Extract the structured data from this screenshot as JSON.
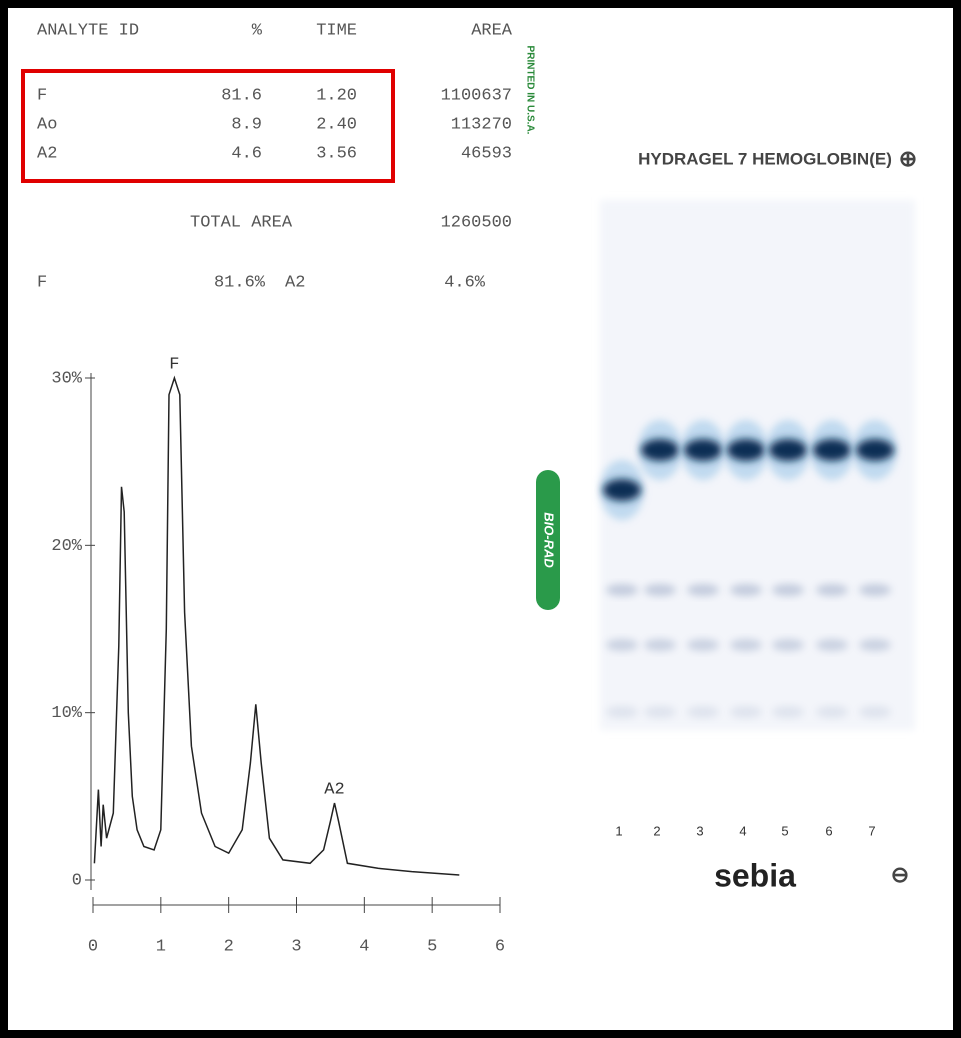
{
  "report": {
    "header": [
      "ANALYTE ID",
      "%",
      "TIME",
      "AREA"
    ],
    "rows": [
      [
        "F",
        "81.6",
        "1.20",
        "1100637"
      ],
      [
        "Ao",
        "8.9",
        "2.40",
        "113270"
      ],
      [
        "A2",
        "4.6",
        "3.56",
        "46593"
      ]
    ],
    "total_label": "TOTAL AREA",
    "total": "1260500",
    "summary": [
      "F",
      "81.6%",
      "A2",
      "4.6%"
    ],
    "side_note": "PRINTED IN U.S.A.",
    "brand": "BIO-RAD"
  },
  "chart_data": {
    "type": "line",
    "color": "#222222",
    "x": [
      0.02,
      0.08,
      0.12,
      0.15,
      0.2,
      0.3,
      0.38,
      0.42,
      0.46,
      0.52,
      0.58,
      0.65,
      0.75,
      0.9,
      1.0,
      1.08,
      1.12,
      1.2,
      1.28,
      1.35,
      1.45,
      1.6,
      1.8,
      2.0,
      2.2,
      2.32,
      2.4,
      2.48,
      2.6,
      2.8,
      3.2,
      3.4,
      3.5,
      3.56,
      3.62,
      3.75,
      4.2,
      4.7,
      5.4
    ],
    "values": [
      1,
      5.4,
      2,
      4.5,
      2.5,
      4,
      14,
      23.5,
      22,
      10,
      5,
      3,
      2,
      1.8,
      3,
      15,
      29,
      30,
      29,
      16,
      8,
      4,
      2,
      1.6,
      3,
      7,
      10.5,
      7,
      2.5,
      1.2,
      1,
      1.8,
      3.5,
      4.6,
      3.5,
      1,
      0.7,
      0.5,
      0.3
    ],
    "xlim": [
      0,
      6
    ],
    "xticks": [
      0,
      1,
      2,
      3,
      4,
      5,
      6
    ],
    "ylim": [
      0,
      30
    ],
    "yticks": [
      0,
      {
        "value": 10,
        "label": "10%"
      },
      {
        "value": 20,
        "label": "20%"
      },
      {
        "value": 30,
        "label": "30%"
      }
    ],
    "annotations": [
      "F",
      "A2"
    ]
  },
  "gel": {
    "title": "HYDRAGEL 7 HEMOGLOBIN(E)",
    "anode": "⊕",
    "lanes": [
      "1",
      "2",
      "3",
      "4",
      "5",
      "6",
      "7"
    ],
    "brand": "sebia",
    "cathode": "⊖"
  }
}
